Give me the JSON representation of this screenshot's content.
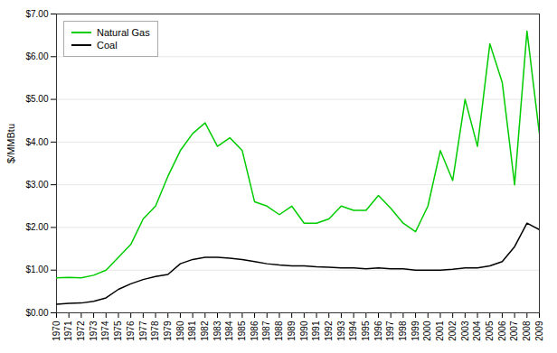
{
  "chart_data": {
    "type": "line",
    "x": [
      1970,
      1971,
      1972,
      1973,
      1974,
      1975,
      1976,
      1977,
      1978,
      1979,
      1980,
      1981,
      1982,
      1983,
      1984,
      1985,
      1986,
      1987,
      1988,
      1989,
      1990,
      1991,
      1992,
      1993,
      1994,
      1995,
      1996,
      1997,
      1998,
      1999,
      2000,
      2001,
      2002,
      2003,
      2004,
      2005,
      2006,
      2007,
      2008,
      2009
    ],
    "series": [
      {
        "name": "Natural Gas",
        "color": "#00cc00",
        "values": [
          0.82,
          0.83,
          0.82,
          0.88,
          1.0,
          1.3,
          1.6,
          2.2,
          2.5,
          3.2,
          3.8,
          4.2,
          4.45,
          3.9,
          4.1,
          3.8,
          2.6,
          2.5,
          2.3,
          2.5,
          2.1,
          2.1,
          2.2,
          2.5,
          2.4,
          2.4,
          2.75,
          2.45,
          2.1,
          1.9,
          2.5,
          3.8,
          3.1,
          5.0,
          3.9,
          6.3,
          5.4,
          3.0,
          6.6,
          4.2
        ]
      },
      {
        "name": "Coal",
        "color": "#000000",
        "values": [
          0.2,
          0.22,
          0.23,
          0.27,
          0.35,
          0.55,
          0.68,
          0.78,
          0.85,
          0.9,
          1.15,
          1.25,
          1.3,
          1.3,
          1.28,
          1.25,
          1.2,
          1.15,
          1.12,
          1.1,
          1.1,
          1.08,
          1.07,
          1.05,
          1.05,
          1.03,
          1.05,
          1.03,
          1.03,
          1.0,
          1.0,
          1.0,
          1.02,
          1.05,
          1.05,
          1.1,
          1.2,
          1.55,
          2.1,
          1.95
        ]
      }
    ],
    "ylabel": "$/MMBtu",
    "xlim": [
      1970,
      2009
    ],
    "xticks": [
      1970,
      1971,
      1972,
      1973,
      1974,
      1975,
      1976,
      1977,
      1978,
      1979,
      1980,
      1981,
      1982,
      1983,
      1984,
      1985,
      1986,
      1987,
      1988,
      1989,
      1990,
      1991,
      1992,
      1993,
      1994,
      1995,
      1996,
      1997,
      1998,
      1999,
      2000,
      2001,
      2002,
      2003,
      2004,
      2005,
      2006,
      2007,
      2008,
      2009
    ],
    "ylim": [
      0.0,
      7.0
    ],
    "yticks": [
      {
        "value": 0.0,
        "label": "$0.00"
      },
      {
        "value": 1.0,
        "label": "$1.00"
      },
      {
        "value": 2.0,
        "label": "$2.00"
      },
      {
        "value": 3.0,
        "label": "$3.00"
      },
      {
        "value": 4.0,
        "label": "$4.00"
      },
      {
        "value": 5.0,
        "label": "$5.00"
      },
      {
        "value": 6.0,
        "label": "$6.00"
      },
      {
        "value": 7.0,
        "label": "$7.00"
      }
    ],
    "grid": true,
    "legend": "upper left"
  }
}
